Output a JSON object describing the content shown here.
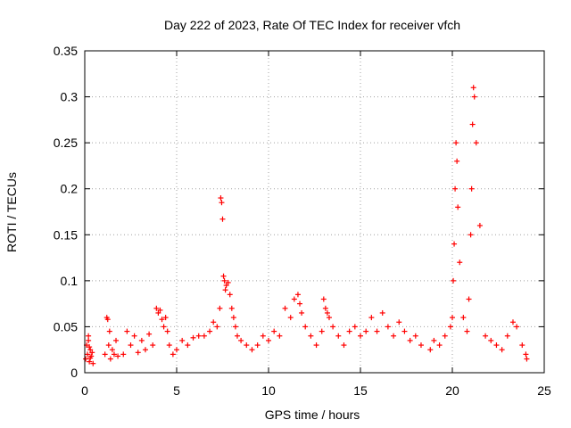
{
  "chart_data": {
    "type": "scatter",
    "title": "Day 222 of 2023, Rate Of TEC Index for receiver vfch",
    "xlabel": "GPS time / hours",
    "ylabel": "ROTI / TECUs",
    "xlim": [
      0,
      25
    ],
    "ylim": [
      0,
      0.35
    ],
    "grid": true,
    "marker": "+",
    "x_ticks": [
      0,
      5,
      10,
      15,
      20,
      25
    ],
    "x_tick_labels": [
      "0",
      "5",
      "10",
      "15",
      "20",
      "25"
    ],
    "y_ticks": [
      0,
      0.05,
      0.1,
      0.15,
      0.2,
      0.25,
      0.3,
      0.35
    ],
    "y_tick_labels": [
      "0",
      "0.05",
      "0.1",
      "0.15",
      "0.2",
      "0.25",
      "0.3",
      "0.35"
    ],
    "colors": {
      "series": "#ff0000",
      "grid": "#a0a0a0",
      "axis": "#000000"
    },
    "series": [
      {
        "name": "ROTI",
        "x": [
          0.05,
          0.1,
          0.15,
          0.2,
          0.25,
          0.3,
          0.35,
          0.4,
          0.45,
          0.2,
          0.25,
          0.3,
          1.1,
          1.2,
          1.25,
          1.3,
          1.35,
          1.4,
          1.5,
          1.6,
          1.7,
          1.8,
          2.1,
          2.3,
          2.5,
          2.7,
          2.9,
          3.1,
          3.3,
          3.5,
          3.7,
          3.9,
          4.0,
          4.1,
          4.2,
          4.3,
          4.4,
          4.5,
          4.6,
          4.8,
          5.0,
          5.3,
          5.6,
          5.9,
          6.2,
          6.5,
          6.8,
          7.0,
          7.2,
          7.35,
          7.4,
          7.45,
          7.5,
          7.55,
          7.6,
          7.65,
          7.7,
          7.8,
          7.9,
          8.0,
          8.1,
          8.2,
          8.3,
          8.5,
          8.8,
          9.1,
          9.4,
          9.7,
          10.0,
          10.3,
          10.6,
          10.9,
          11.2,
          11.4,
          11.6,
          11.7,
          11.8,
          12.0,
          12.3,
          12.6,
          12.9,
          13.0,
          13.1,
          13.2,
          13.3,
          13.5,
          13.8,
          14.1,
          14.4,
          14.7,
          15.0,
          15.3,
          15.6,
          15.9,
          16.2,
          16.5,
          16.8,
          17.1,
          17.4,
          17.7,
          18.0,
          18.3,
          18.8,
          19.0,
          19.3,
          19.6,
          19.9,
          20.0,
          20.05,
          20.1,
          20.15,
          20.2,
          20.25,
          20.3,
          20.4,
          20.6,
          20.8,
          20.9,
          21.0,
          21.05,
          21.1,
          21.15,
          21.2,
          21.3,
          21.5,
          21.8,
          22.1,
          22.4,
          22.7,
          23.0,
          23.3,
          23.5,
          23.8,
          24.0,
          24.05
        ],
        "y": [
          0.015,
          0.03,
          0.02,
          0.035,
          0.012,
          0.025,
          0.018,
          0.022,
          0.01,
          0.04,
          0.028,
          0.016,
          0.02,
          0.06,
          0.058,
          0.03,
          0.045,
          0.015,
          0.025,
          0.02,
          0.035,
          0.018,
          0.02,
          0.045,
          0.03,
          0.04,
          0.022,
          0.035,
          0.025,
          0.042,
          0.03,
          0.07,
          0.065,
          0.068,
          0.058,
          0.05,
          0.06,
          0.045,
          0.03,
          0.02,
          0.025,
          0.035,
          0.03,
          0.038,
          0.04,
          0.04,
          0.045,
          0.055,
          0.05,
          0.07,
          0.19,
          0.185,
          0.167,
          0.105,
          0.1,
          0.09,
          0.095,
          0.098,
          0.085,
          0.07,
          0.06,
          0.05,
          0.04,
          0.035,
          0.03,
          0.025,
          0.03,
          0.04,
          0.035,
          0.045,
          0.04,
          0.07,
          0.06,
          0.08,
          0.085,
          0.075,
          0.065,
          0.05,
          0.04,
          0.03,
          0.045,
          0.08,
          0.07,
          0.065,
          0.06,
          0.05,
          0.04,
          0.03,
          0.045,
          0.05,
          0.04,
          0.045,
          0.06,
          0.045,
          0.065,
          0.05,
          0.04,
          0.055,
          0.045,
          0.035,
          0.04,
          0.03,
          0.025,
          0.035,
          0.03,
          0.04,
          0.05,
          0.06,
          0.1,
          0.14,
          0.2,
          0.25,
          0.23,
          0.18,
          0.12,
          0.06,
          0.045,
          0.08,
          0.15,
          0.2,
          0.27,
          0.31,
          0.3,
          0.25,
          0.16,
          0.04,
          0.035,
          0.03,
          0.025,
          0.04,
          0.055,
          0.05,
          0.03,
          0.02,
          0.015
        ]
      }
    ]
  }
}
